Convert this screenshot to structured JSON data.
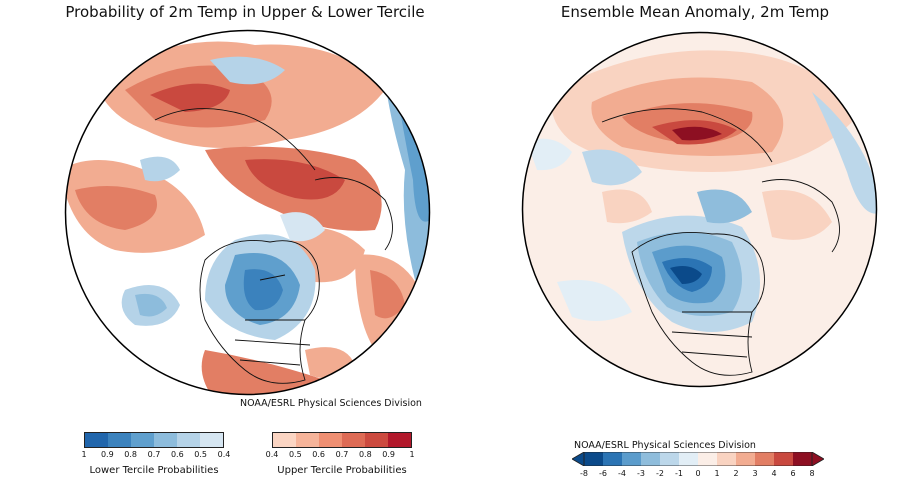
{
  "panels": {
    "left": {
      "title": "Probability of 2m Temp in Upper & Lower Tercile",
      "credit": "NOAA/ESRL Physical Sciences Division"
    },
    "right": {
      "title": "Ensemble Mean Anomaly, 2m Temp",
      "credit": "NOAA/ESRL Physical Sciences Division"
    }
  },
  "colorbars": {
    "lower": {
      "label": "Lower Tercile Probabilities",
      "ticks": [
        "1",
        "0.9",
        "0.8",
        "0.7",
        "0.6",
        "0.5",
        "0.4"
      ],
      "colors": [
        "#2166ac",
        "#3b82bd",
        "#5f9fcd",
        "#8dbcdc",
        "#b5d3e8",
        "#d6e6f2"
      ]
    },
    "upper": {
      "label": "Upper Tercile Probabilities",
      "ticks": [
        "0.4",
        "0.5",
        "0.6",
        "0.7",
        "0.8",
        "0.9",
        "1"
      ],
      "colors": [
        "#fbd5c3",
        "#f6b49a",
        "#ef8f72",
        "#de6b55",
        "#cc4a3f",
        "#b2182b"
      ]
    },
    "anomaly": {
      "ticks": [
        "-8",
        "-6",
        "-4",
        "-3",
        "-2",
        "-1",
        "0",
        "1",
        "2",
        "3",
        "4",
        "6",
        "8"
      ],
      "colors": [
        "#0b4a8a",
        "#2b74b4",
        "#5b9ccc",
        "#8fbddc",
        "#bcd7ea",
        "#e2eef6",
        "#fbeee7",
        "#f9d3c1",
        "#f2ac91",
        "#e27e64",
        "#c9493f",
        "#8d0f22"
      ]
    }
  }
}
